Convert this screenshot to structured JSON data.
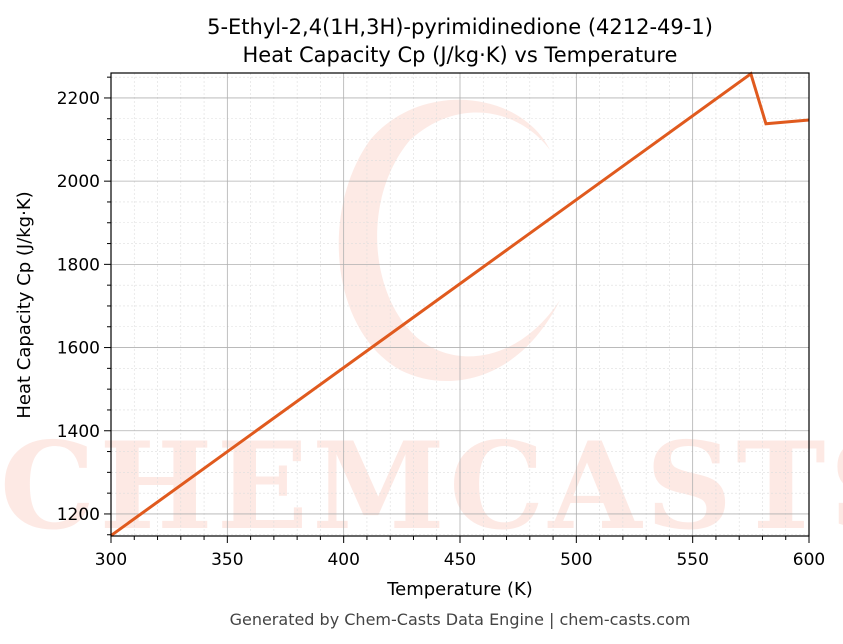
{
  "chart_data": {
    "type": "line",
    "title": "5-Ethyl-2,4(1H,3H)-pyrimidinedione (4212-49-1)",
    "subtitle": "Heat Capacity Cp (J/kg·K) vs Temperature",
    "xlabel": "Temperature (K)",
    "ylabel": "Heat Capacity Cp (J/kg·K)",
    "xlim": [
      300,
      600
    ],
    "ylim": [
      1147,
      2260
    ],
    "xticks": [
      300,
      350,
      400,
      450,
      500,
      550,
      600
    ],
    "yticks": [
      1200,
      1400,
      1600,
      1800,
      2000,
      2200
    ],
    "grid": true,
    "series": [
      {
        "name": "Cp",
        "color": "#e05a1e",
        "x": [
          300,
          575,
          581.5,
          600
        ],
        "y": [
          1148,
          2258,
          2138,
          2147
        ]
      }
    ]
  },
  "watermark": "CHEMCASTS",
  "footer": "Generated by Chem-Casts Data Engine | chem-casts.com"
}
